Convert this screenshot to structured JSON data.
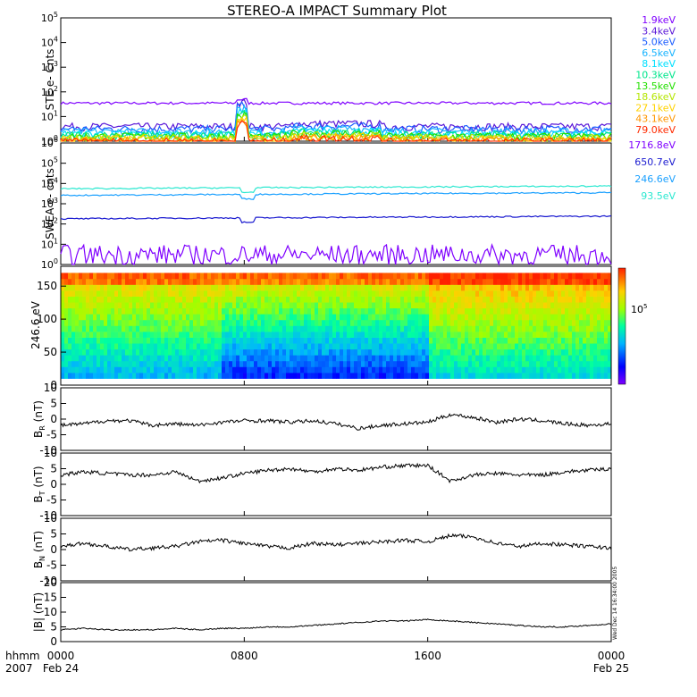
{
  "title": "STEREO-A IMPACT Summary Plot",
  "corner_labels": {
    "time_unit": "hhmm",
    "year": "2007"
  },
  "x_axis": {
    "range_hours": [
      0,
      24
    ],
    "ticks": [
      {
        "hour": 0,
        "time": "0000",
        "date": "Feb 24"
      },
      {
        "hour": 8,
        "time": "0800",
        "date": ""
      },
      {
        "hour": 16,
        "time": "1600",
        "date": ""
      },
      {
        "hour": 24,
        "time": "0000",
        "date": "Feb 25"
      }
    ]
  },
  "side_stamp": "Wed Dec 14 16:34:00 2005",
  "colors": {
    "trace": "#000000",
    "ste": [
      "#7f00ff",
      "#5a18d8",
      "#1a5cff",
      "#18b4ff",
      "#00e0ff",
      "#00e68c",
      "#22e000",
      "#b4e600",
      "#ffd200",
      "#ff9600",
      "#ff2a00"
    ],
    "swea": [
      "#7f00ff",
      "#1a1ad0",
      "#1aa0ff",
      "#2ae8d0"
    ]
  },
  "chart_data": [
    {
      "type": "line",
      "panel": "ste",
      "ylabel": "STE e- Cnts",
      "y_scale": "log",
      "ylim": [
        1,
        100000
      ],
      "y_ticks": [
        {
          "base": "10",
          "exp": "0"
        },
        {
          "base": "10",
          "exp": "1"
        },
        {
          "base": "10",
          "exp": "2"
        },
        {
          "base": "10",
          "exp": "3"
        },
        {
          "base": "10",
          "exp": "4"
        },
        {
          "base": "10",
          "exp": "5"
        }
      ],
      "legend_position": "right",
      "series": [
        {
          "name": "1.9keV",
          "level": 35
        },
        {
          "name": "3.4keV",
          "level": 4
        },
        {
          "name": "5.0keV",
          "level": 3.2
        },
        {
          "name": "6.5keV",
          "level": 2.5
        },
        {
          "name": "8.1keV",
          "level": 2
        },
        {
          "name": "10.3keV",
          "level": 1.8
        },
        {
          "name": "13.5keV",
          "level": 1.6
        },
        {
          "name": "18.6keV",
          "level": 1.4
        },
        {
          "name": "27.1keV",
          "level": 1.25
        },
        {
          "name": "43.1keV",
          "level": 1.1
        },
        {
          "name": "79.0keV",
          "level": 1.0
        }
      ],
      "event_hours": 7.9
    },
    {
      "type": "line",
      "panel": "swea",
      "ylabel": "SWEA e- cnts",
      "y_scale": "log",
      "ylim": [
        1,
        1000000
      ],
      "y_ticks": [
        {
          "base": "10",
          "exp": "0"
        },
        {
          "base": "10",
          "exp": "1"
        },
        {
          "base": "10",
          "exp": "2"
        },
        {
          "base": "10",
          "exp": "3"
        },
        {
          "base": "10",
          "exp": "4"
        },
        {
          "base": "10",
          "exp": "5"
        },
        {
          "base": "10",
          "exp": "6"
        }
      ],
      "legend_position": "right",
      "series": [
        {
          "name": "1716.8eV",
          "level": 3
        },
        {
          "name": "650.7eV",
          "level": 180
        },
        {
          "name": "246.6eV",
          "level": 2600
        },
        {
          "name": "93.5eV",
          "level": 5500
        }
      ]
    },
    {
      "type": "heatmap",
      "panel": "pad",
      "ylabel": "246.6 eV",
      "ylim": [
        0,
        180
      ],
      "y_ticks": [
        0,
        50,
        100,
        150
      ],
      "colorbar": {
        "label_base": "10",
        "label_exp": "5"
      }
    },
    {
      "type": "line",
      "panel": "br",
      "ylabel": {
        "main": "B",
        "sub": "R",
        "unit": " (nT)"
      },
      "ylim": [
        -10,
        10
      ],
      "y_ticks": [
        -10,
        -5,
        0,
        5,
        10
      ],
      "x_hours": [
        0,
        1,
        2,
        3,
        4,
        5,
        6,
        7,
        8,
        9,
        10,
        11,
        12,
        13,
        14,
        15,
        16,
        17,
        18,
        19,
        20,
        21,
        22,
        23,
        24
      ],
      "values": [
        -2,
        -1.5,
        -0.5,
        -0.5,
        -2,
        -1.5,
        -2,
        -1,
        -0.5,
        -0.5,
        -1,
        -0.5,
        -1.5,
        -3,
        -2,
        -1.5,
        -1,
        1.5,
        0.5,
        -1,
        0,
        -0.5,
        -1.5,
        -2,
        -1.5
      ]
    },
    {
      "type": "line",
      "panel": "bt",
      "ylabel": {
        "main": "B",
        "sub": "T",
        "unit": " (nT)"
      },
      "ylim": [
        -10,
        10
      ],
      "y_ticks": [
        -10,
        -5,
        0,
        5,
        10
      ],
      "x_hours": [
        0,
        1,
        2,
        3,
        4,
        5,
        6,
        7,
        8,
        9,
        10,
        11,
        12,
        13,
        14,
        15,
        16,
        17,
        18,
        19,
        20,
        21,
        22,
        23,
        24
      ],
      "values": [
        3,
        4,
        3.5,
        3,
        3,
        4,
        1,
        2,
        3.5,
        4.5,
        5,
        4,
        5,
        4.5,
        5.5,
        6,
        6,
        1,
        3,
        3.5,
        3,
        3,
        4,
        4.5,
        5
      ]
    },
    {
      "type": "line",
      "panel": "bn",
      "ylabel": {
        "main": "B",
        "sub": "N",
        "unit": " (nT)"
      },
      "ylim": [
        -10,
        10
      ],
      "y_ticks": [
        -10,
        -5,
        0,
        5,
        10
      ],
      "x_hours": [
        0,
        1,
        2,
        3,
        4,
        5,
        6,
        7,
        8,
        9,
        10,
        11,
        12,
        13,
        14,
        15,
        16,
        17,
        18,
        19,
        20,
        21,
        22,
        23,
        24
      ],
      "values": [
        1,
        2,
        1,
        0,
        0.5,
        1,
        2.5,
        3,
        2,
        1,
        0.5,
        2,
        1.5,
        2,
        2.5,
        3,
        2.5,
        4.5,
        4,
        2,
        1,
        2,
        1.5,
        1,
        0.5
      ]
    },
    {
      "type": "line",
      "panel": "bmag",
      "ylabel": {
        "main": "|B|",
        "sub": "",
        "unit": " (nT)"
      },
      "ylim": [
        0,
        20
      ],
      "y_ticks": [
        0,
        5,
        10,
        15,
        20
      ],
      "x_hours": [
        0,
        1,
        2,
        3,
        4,
        5,
        6,
        7,
        8,
        9,
        10,
        11,
        12,
        13,
        14,
        15,
        16,
        17,
        18,
        19,
        20,
        21,
        22,
        23,
        24
      ],
      "values": [
        4,
        4.5,
        4,
        4,
        4,
        4.5,
        4,
        4.5,
        4.5,
        5,
        5,
        5.5,
        6,
        6.5,
        7,
        7,
        7.5,
        7,
        6.5,
        6,
        5.5,
        5,
        5,
        5.5,
        6
      ]
    }
  ]
}
